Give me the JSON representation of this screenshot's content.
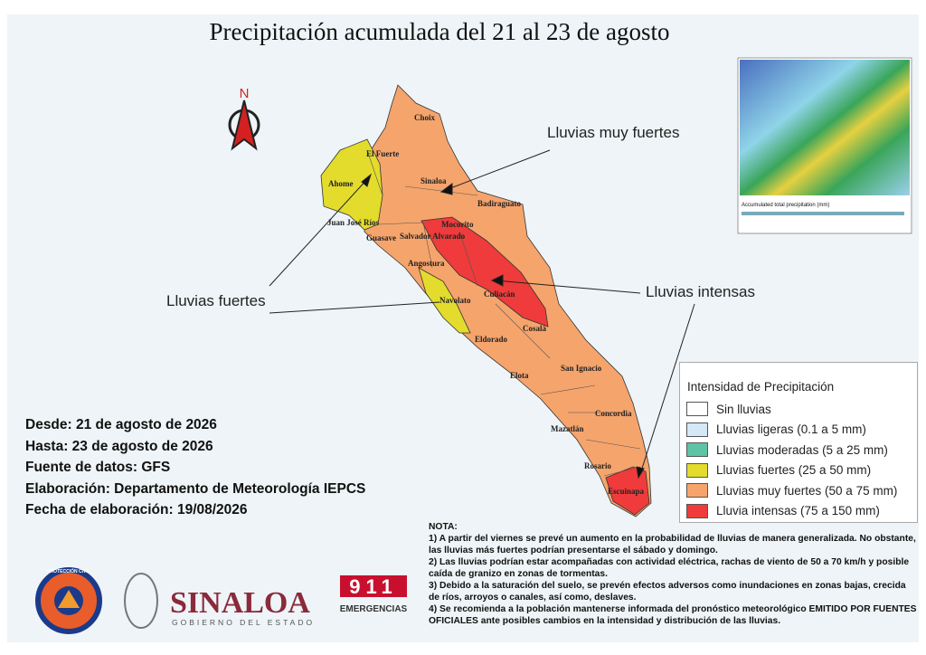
{
  "header": {
    "title": "Precipitación acumulada del 21 al 23 de agosto",
    "north": "N"
  },
  "map": {
    "municipalities": [
      "Choix",
      "El Fuerte",
      "Ahome",
      "Sinaloa",
      "Badiraguato",
      "Juan José Ríos",
      "Guasave",
      "Salvador Alvarado",
      "Mocorito",
      "Angostura",
      "Navolato",
      "Culiacán",
      "Cosalá",
      "Eldorado",
      "Elota",
      "San Ignacio",
      "Concordia",
      "Mazatlán",
      "Rosario",
      "Escuinapa"
    ],
    "callouts": [
      "Lluvias muy fuertes",
      "Lluvias fuertes",
      "Lluvias intensas"
    ]
  },
  "inset": {
    "caption": "Accumulated total precipitation (mm)"
  },
  "legend": {
    "title": "Intensidad de Precipitación",
    "items": [
      {
        "label": "Sin lluvias",
        "color": "#ffffff"
      },
      {
        "label": "Lluvias ligeras (0.1 a 5 mm)",
        "color": "#d4e8f5"
      },
      {
        "label": "Lluvias moderadas (5 a 25 mm)",
        "color": "#5ec4a6"
      },
      {
        "label": "Lluvias fuertes (25 a 50 mm)",
        "color": "#e3dc2c"
      },
      {
        "label": "Lluvias muy fuertes (50 a 75 mm)",
        "color": "#f5a46c"
      },
      {
        "label": "Lluvia intensas (75 a 150 mm)",
        "color": "#ef3b3b"
      }
    ]
  },
  "info": [
    "Desde: 21 de agosto de 2026",
    "Hasta: 23 de agosto de 2026",
    "Fuente de datos: GFS",
    "Elaboración: Departamento de Meteorología IEPCS",
    "Fecha de elaboración: 19/08/2026"
  ],
  "nota": {
    "title": "NOTA:",
    "items": [
      "1) A partir del viernes se prevé un aumento en la probabilidad de lluvias de manera generalizada. No obstante, las lluvias más fuertes podrían presentarse el sábado y domingo.",
      "2) Las lluvias podrían estar acompañadas con actividad eléctrica, rachas  de viento de 50 a 70 km/h y posible caída de granizo en zonas de tormentas.",
      "3) Debido a la saturación del suelo, se prevén efectos adversos como inundaciones en zonas bajas, crecida de ríos, arroyos o canales, así como, deslaves.",
      "4) Se recomienda a la población mantenerse informada del pronóstico meteorológico EMITIDO POR FUENTES OFICIALES ante posibles cambios en la intensidad y distribución de las lluvias."
    ]
  },
  "logos": {
    "proteccion_civil": "PROTECCIÓN CIVIL",
    "state": "SINALOA",
    "government": "GOBIERNO DEL ESTADO",
    "emergency_number": "911",
    "emergency": "EMERGENCIAS"
  }
}
